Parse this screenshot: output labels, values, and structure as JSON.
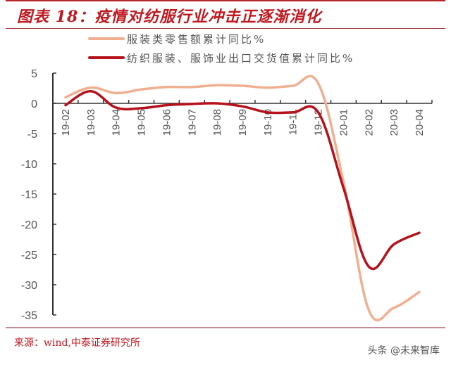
{
  "header": {
    "title": "图表 18：疫情对纺服行业冲击正逐渐消化"
  },
  "legend": [
    {
      "label": "服装类零售额累计同比%",
      "color": "#f0b090"
    },
    {
      "label": "纺织服装、服饰业出口交货值累计同比%",
      "color": "#b5121b"
    }
  ],
  "footer": {
    "source": "来源：wind,中泰证券研究所",
    "watermark": "头条 @未来智库"
  },
  "colors": {
    "accent": "#c0191f",
    "series_light": "#f0b090",
    "series_dark": "#b5121b",
    "axis": "#333333"
  },
  "chart_data": {
    "type": "line",
    "title": "图表 18：疫情对纺服行业冲击正逐渐消化",
    "xlabel": "",
    "ylabel": "",
    "categories": [
      "19-02",
      "19-03",
      "19-04",
      "19-05",
      "19-06",
      "19-07",
      "19-08",
      "19-09",
      "19-10",
      "19-11",
      "19-12",
      "20-01",
      "20-02",
      "20-03",
      "20-04"
    ],
    "series": [
      {
        "name": "服装类零售额累计同比%",
        "color": "#f0b090",
        "values": [
          1.0,
          2.6,
          1.7,
          2.3,
          2.7,
          2.7,
          3.0,
          2.9,
          2.6,
          2.9,
          3.3,
          -13.0,
          -34.2,
          -33.8,
          -31.2
        ]
      },
      {
        "name": "纺织服装、服饰业出口交货值累计同比%",
        "color": "#b5121b",
        "values": [
          -0.3,
          2.0,
          -0.7,
          -0.8,
          -0.3,
          -0.1,
          0.0,
          -0.5,
          -1.5,
          -1.5,
          -1.5,
          -14.0,
          -27.0,
          -23.3,
          -21.4
        ]
      }
    ],
    "ylim": [
      -35,
      5
    ],
    "yticks": [
      5,
      0,
      -5,
      -10,
      -15,
      -20,
      -25,
      -30,
      -35
    ],
    "grid": false,
    "legend_position": "top"
  }
}
